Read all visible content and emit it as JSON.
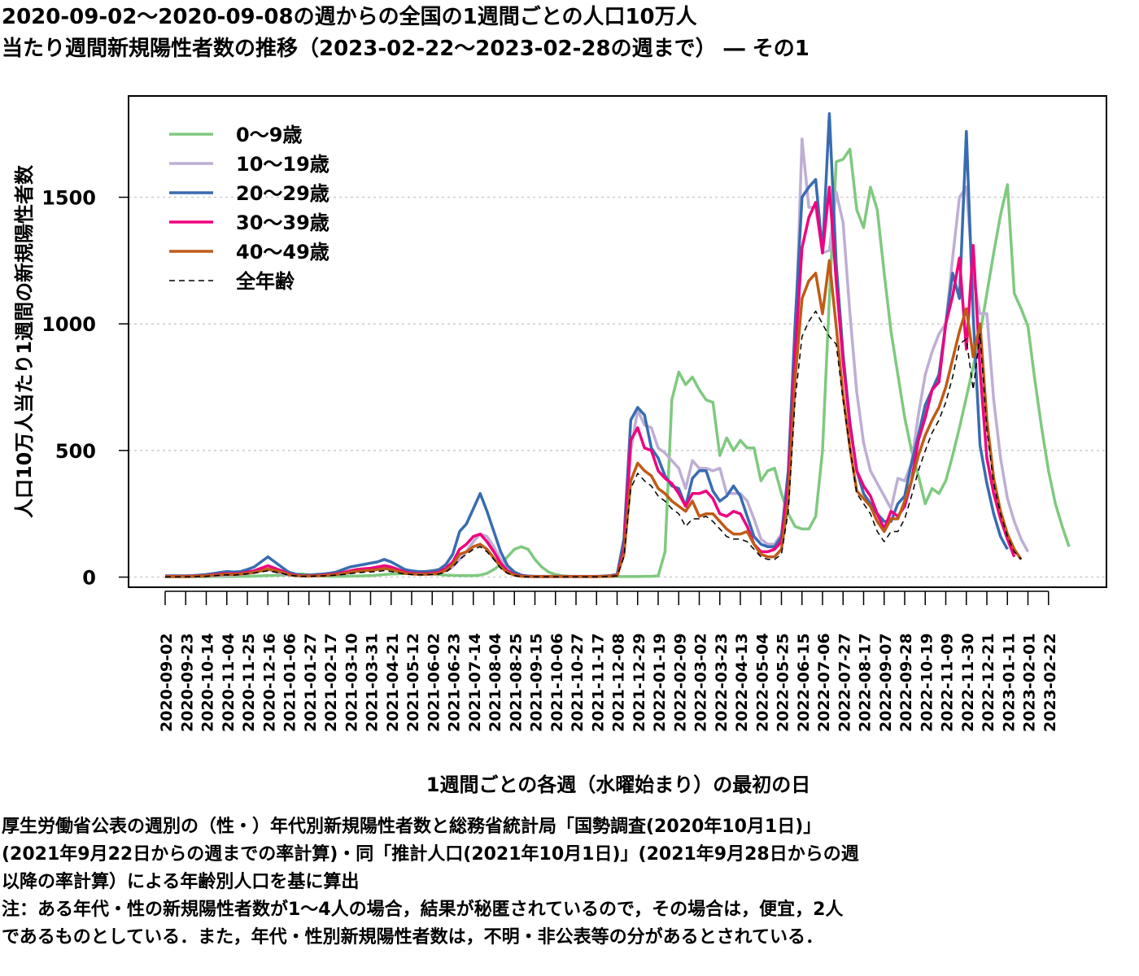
{
  "title_lines": [
    "2020-09-02〜2020-09-08の週からの全国の1週間ごとの人口10万人",
    "当たり週間新規陽性者数の推移（2023-02-22〜2023-02-28の週まで） ― その1"
  ],
  "footer_lines": [
    "厚生労働省公表の週別の（性・）年代別新規陽性者数と総務省統計局「国勢調査(2020年10月1日)」",
    "(2021年9月22日からの週までの率計算)・同「推計人口(2021年10月1日)」(2021年9月28日からの週",
    "以降の率計算）による年齢別人口を基に算出",
    "注：ある年代・性の新規陽性者数が1〜4人の場合，結果が秘匿されているので，その場合は，便宜，2人",
    "であるものとしている．また，年代・性別新規陽性者数は，不明・非公表等の分があるとされている．"
  ],
  "chart_data": {
    "type": "line",
    "xlabel": "1週間ごとの各週（水曜始まり）の最初の日",
    "ylabel": "人口10万人当たり1週間の新規陽性者数",
    "ylim": [
      -40,
      1900
    ],
    "yticks": [
      0,
      500,
      1000,
      1500
    ],
    "grid": "horizontal dotted",
    "legend_position": "top-left",
    "x_tick_labels": [
      "2020-09-02",
      "2020-09-23",
      "2020-10-14",
      "2020-11-04",
      "2020-11-25",
      "2020-12-16",
      "2021-01-06",
      "2021-01-27",
      "2021-02-17",
      "2021-03-10",
      "2021-03-31",
      "2021-04-21",
      "2021-05-12",
      "2021-06-02",
      "2021-06-23",
      "2021-07-14",
      "2021-08-04",
      "2021-08-25",
      "2021-09-15",
      "2021-10-06",
      "2021-10-27",
      "2021-11-17",
      "2021-12-08",
      "2021-12-29",
      "2022-01-19",
      "2022-02-09",
      "2022-03-02",
      "2022-03-23",
      "2022-04-13",
      "2022-05-04",
      "2022-05-25",
      "2022-06-15",
      "2022-07-06",
      "2022-07-27",
      "2022-08-17",
      "2022-09-07",
      "2022-09-28",
      "2022-10-19",
      "2022-11-09",
      "2022-11-30",
      "2022-12-21",
      "2023-01-11",
      "2023-02-01",
      "2023-02-22"
    ],
    "weeks_per_tick": 3,
    "series": [
      {
        "name": "0〜9歳",
        "color": "#7fc97f",
        "dash": "solid",
        "values": [
          1,
          1,
          1,
          1,
          1,
          1,
          1,
          2,
          2,
          2,
          2,
          3,
          3,
          4,
          5,
          6,
          7,
          8,
          9,
          10,
          12,
          9,
          6,
          4,
          3,
          3,
          3,
          4,
          4,
          5,
          6,
          8,
          10,
          12,
          13,
          14,
          15,
          15,
          14,
          12,
          10,
          8,
          7,
          6,
          6,
          6,
          8,
          15,
          30,
          50,
          80,
          110,
          120,
          110,
          70,
          40,
          20,
          10,
          5,
          3,
          2,
          2,
          2,
          2,
          2,
          2,
          2,
          2,
          2,
          2,
          3,
          3,
          5,
          100,
          700,
          810,
          760,
          790,
          740,
          700,
          690,
          480,
          550,
          500,
          540,
          510,
          510,
          380,
          420,
          430,
          330,
          250,
          200,
          190,
          190,
          240,
          500,
          1100,
          1640,
          1650,
          1690,
          1450,
          1380,
          1540,
          1450,
          1200,
          970,
          800,
          630,
          500,
          400,
          290,
          350,
          330,
          380,
          480,
          590,
          710,
          830,
          960,
          1120,
          1280,
          1430,
          1550,
          1120,
          1060,
          990,
          780,
          590,
          420,
          290,
          200,
          120
        ]
      },
      {
        "name": "10〜19歳",
        "color": "#beaed4",
        "dash": "solid",
        "values": [
          2,
          2,
          2,
          2,
          2,
          3,
          4,
          5,
          6,
          7,
          8,
          10,
          14,
          18,
          25,
          30,
          22,
          14,
          8,
          5,
          4,
          4,
          5,
          6,
          8,
          10,
          13,
          18,
          25,
          30,
          33,
          35,
          40,
          35,
          28,
          22,
          18,
          16,
          15,
          16,
          18,
          25,
          40,
          70,
          100,
          140,
          170,
          160,
          120,
          70,
          35,
          15,
          6,
          3,
          2,
          2,
          2,
          2,
          2,
          2,
          2,
          2,
          2,
          2,
          3,
          4,
          6,
          100,
          500,
          660,
          600,
          590,
          510,
          490,
          460,
          430,
          350,
          460,
          430,
          430,
          420,
          430,
          330,
          330,
          330,
          300,
          230,
          150,
          130,
          130,
          170,
          400,
          900,
          1730,
          1460,
          1460,
          1280,
          1290,
          1520,
          1400,
          1040,
          730,
          530,
          420,
          370,
          320,
          270,
          390,
          380,
          450,
          640,
          800,
          890,
          960,
          1000,
          1260,
          1500,
          1540,
          1180,
          1040,
          1040,
          700,
          470,
          310,
          220,
          150,
          100
        ]
      },
      {
        "name": "20〜29歳",
        "color": "#386cb0",
        "dash": "solid",
        "values": [
          5,
          5,
          5,
          5,
          6,
          8,
          10,
          14,
          18,
          22,
          20,
          22,
          30,
          40,
          60,
          80,
          60,
          40,
          20,
          12,
          8,
          8,
          10,
          12,
          15,
          20,
          30,
          40,
          45,
          50,
          55,
          60,
          70,
          60,
          45,
          30,
          25,
          22,
          22,
          25,
          30,
          50,
          90,
          180,
          210,
          270,
          330,
          260,
          180,
          100,
          45,
          20,
          8,
          4,
          3,
          3,
          3,
          3,
          3,
          3,
          3,
          3,
          3,
          3,
          4,
          6,
          10,
          150,
          620,
          670,
          640,
          510,
          470,
          400,
          360,
          350,
          280,
          390,
          420,
          420,
          340,
          300,
          320,
          360,
          320,
          240,
          160,
          130,
          120,
          120,
          160,
          420,
          1000,
          1500,
          1540,
          1570,
          1280,
          1830,
          1240,
          880,
          610,
          420,
          330,
          290,
          250,
          220,
          220,
          290,
          320,
          450,
          560,
          680,
          740,
          800,
          1000,
          1200,
          1100,
          1760,
          1030,
          520,
          370,
          250,
          160,
          110
        ]
      },
      {
        "name": "30〜39歳",
        "color": "#f0027f",
        "dash": "solid",
        "values": [
          3,
          3,
          3,
          3,
          4,
          5,
          6,
          9,
          12,
          14,
          13,
          15,
          20,
          25,
          35,
          45,
          35,
          25,
          13,
          8,
          5,
          5,
          6,
          8,
          10,
          13,
          18,
          25,
          30,
          33,
          35,
          40,
          45,
          40,
          30,
          20,
          16,
          14,
          14,
          16,
          20,
          35,
          60,
          110,
          130,
          160,
          170,
          140,
          100,
          55,
          25,
          10,
          4,
          2,
          2,
          2,
          2,
          2,
          2,
          2,
          2,
          2,
          2,
          2,
          3,
          4,
          7,
          110,
          540,
          590,
          510,
          500,
          420,
          390,
          370,
          330,
          280,
          330,
          330,
          340,
          310,
          250,
          240,
          260,
          250,
          200,
          130,
          100,
          100,
          110,
          140,
          370,
          880,
          1300,
          1420,
          1480,
          1280,
          1540,
          1170,
          850,
          600,
          420,
          360,
          320,
          250,
          190,
          260,
          240,
          280,
          380,
          540,
          630,
          740,
          770,
          1000,
          1110,
          1260,
          900,
          1310,
          820,
          470,
          330,
          230,
          150,
          80
        ]
      },
      {
        "name": "40〜49歳",
        "color": "#bf5b17",
        "dash": "solid",
        "values": [
          2,
          2,
          2,
          2,
          3,
          4,
          5,
          7,
          9,
          11,
          10,
          12,
          15,
          19,
          25,
          32,
          26,
          19,
          10,
          6,
          4,
          4,
          5,
          6,
          8,
          10,
          14,
          19,
          23,
          25,
          27,
          30,
          34,
          30,
          23,
          15,
          12,
          11,
          11,
          12,
          15,
          27,
          50,
          90,
          100,
          120,
          130,
          110,
          75,
          40,
          18,
          8,
          3,
          2,
          2,
          2,
          2,
          2,
          2,
          2,
          2,
          2,
          2,
          2,
          3,
          3,
          5,
          90,
          380,
          450,
          420,
          400,
          350,
          330,
          300,
          280,
          260,
          300,
          240,
          250,
          250,
          220,
          190,
          170,
          170,
          180,
          130,
          90,
          80,
          80,
          110,
          300,
          780,
          1100,
          1170,
          1200,
          1040,
          1250,
          990,
          720,
          510,
          340,
          310,
          280,
          220,
          180,
          230,
          230,
          300,
          380,
          480,
          560,
          620,
          670,
          750,
          860,
          970,
          1060,
          870,
          1000,
          620,
          390,
          260,
          170,
          110,
          70
        ]
      },
      {
        "name": "全年齢",
        "color": "#000000",
        "dash": "dashed",
        "values": [
          1,
          1,
          1,
          1,
          2,
          3,
          3,
          5,
          7,
          9,
          8,
          10,
          13,
          16,
          20,
          25,
          20,
          15,
          8,
          5,
          3,
          3,
          4,
          5,
          6,
          8,
          10,
          14,
          17,
          19,
          20,
          22,
          26,
          22,
          17,
          12,
          10,
          9,
          9,
          10,
          12,
          20,
          40,
          70,
          90,
          110,
          120,
          100,
          70,
          35,
          15,
          6,
          2,
          1,
          1,
          1,
          1,
          1,
          1,
          1,
          1,
          1,
          1,
          1,
          2,
          3,
          5,
          80,
          350,
          410,
          380,
          360,
          320,
          300,
          270,
          250,
          200,
          230,
          230,
          240,
          220,
          190,
          160,
          150,
          150,
          140,
          110,
          80,
          70,
          70,
          90,
          260,
          700,
          950,
          1010,
          1050,
          1000,
          950,
          920,
          700,
          510,
          330,
          290,
          250,
          180,
          140,
          180,
          180,
          230,
          320,
          420,
          500,
          570,
          620,
          690,
          790,
          920,
          940,
          740,
          960,
          580,
          370,
          250,
          160,
          100,
          70
        ]
      }
    ]
  }
}
